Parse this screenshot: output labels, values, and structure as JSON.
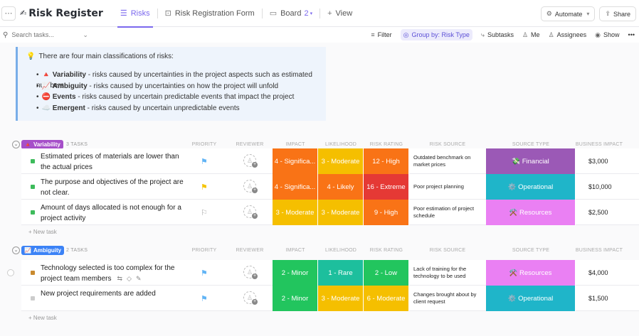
{
  "header": {
    "title": "Risk Register",
    "title_icon": "pencil-icon",
    "tabs": [
      {
        "label": "Risks",
        "icon": "list-icon",
        "active": true
      },
      {
        "label": "Risk Registration Form",
        "icon": "form-icon"
      },
      {
        "label": "Board",
        "icon": "board-icon",
        "count": "2"
      }
    ],
    "add_view": "View",
    "automate": "Automate",
    "share": "Share"
  },
  "toolbar": {
    "search_placeholder": "Search tasks...",
    "filter": "Filter",
    "group_by": "Group by: Risk Type",
    "subtasks": "Subtasks",
    "me": "Me",
    "assignees": "Assignees",
    "show": "Show"
  },
  "callout": {
    "intro": "There are four main classifications of risks:",
    "items": [
      {
        "emoji": "🔺",
        "name": "Variability",
        "desc": " - risks caused by uncertainties in the project aspects such as estimated numbers"
      },
      {
        "emoji": "📈",
        "name": "Ambiguity",
        "desc": " - risks caused by uncertainties on how the project will unfold"
      },
      {
        "emoji": "⛔",
        "name": "Events",
        "desc": " - risks caused by uncertain predictable events that impact the project"
      },
      {
        "emoji": "☁️",
        "name": "Emergent",
        "desc": " - risks caused by uncertain unpredictable events"
      }
    ]
  },
  "columns": {
    "priority": "PRIORITY",
    "reviewer": "REVIEWER",
    "impact": "IMPACT",
    "likelihood": "LIKELIHOOD",
    "risk_rating": "RISK RATING",
    "risk_source": "RISK SOURCE",
    "source_type": "SOURCE TYPE",
    "business_impact": "BUSINESS IMPACT"
  },
  "groups": [
    {
      "name": "Variability",
      "emoji": "🔺",
      "color": "#a64fc9",
      "count": "3 TASKS",
      "new_task": "+ New task",
      "rows": [
        {
          "name": "Estimated prices of materials are lower than the actual prices",
          "status_color": "#3dbb5b",
          "flag": "⚑",
          "flag_color": "#61b4f5",
          "impact": "4 - Significa...",
          "impact_color": "#f97316",
          "likelihood": "3 - Moderate",
          "likelihood_color": "#f5bf00",
          "rating": "12 - High",
          "rating_color": "#f97316",
          "source": "Outdated benchmark on market prices",
          "source_type": "💸 Financial",
          "source_type_color": "#9b59b6",
          "business_impact": "$3,000"
        },
        {
          "name": "The purpose and objectives of the project are not clear.",
          "status_color": "#3dbb5b",
          "flag": "⚑",
          "flag_color": "#f5c400",
          "impact": "4 - Significa...",
          "impact_color": "#f97316",
          "likelihood": "4 - Likely",
          "likelihood_color": "#f97316",
          "rating": "16 - Extreme",
          "rating_color": "#e53935",
          "source": "Poor project planning",
          "source_type": "⚙️ Operational",
          "source_type_color": "#1fb5c9",
          "business_impact": "$10,000"
        },
        {
          "name": "Amount of days allocated is not enough for a project activity",
          "status_color": "#3dbb5b",
          "flag": "⚐",
          "flag_color": "#aaaaaa",
          "impact": "3 - Moderate",
          "impact_color": "#f5bf00",
          "likelihood": "3 - Moderate",
          "likelihood_color": "#f5bf00",
          "rating": "9 - High",
          "rating_color": "#f97316",
          "source": "Poor estimation of project schedule",
          "source_type": "⚒️ Resources",
          "source_type_color": "#ea80f3",
          "business_impact": "$2,500"
        }
      ]
    },
    {
      "name": "Ambiguity",
      "emoji": "📈",
      "color": "#3b82f6",
      "count": "2 TASKS",
      "new_task": "+ New task",
      "rows": [
        {
          "name": "Technology selected is too complex for the project team members",
          "status_color": "#c98a2e",
          "flag": "⚑",
          "flag_color": "#61b4f5",
          "impact": "2 - Minor",
          "impact_color": "#22c55e",
          "likelihood": "1 - Rare",
          "likelihood_color": "#1dbf9d",
          "rating": "2 - Low",
          "rating_color": "#22c55e",
          "source": "Lack of training for the technology to be used",
          "source_type": "⚒️ Resources",
          "source_type_color": "#ea80f3",
          "business_impact": "$4,000"
        },
        {
          "name": "New project requirements are added",
          "status_color": "#cccccc",
          "flag": "⚑",
          "flag_color": "#61b4f5",
          "impact": "2 - Minor",
          "impact_color": "#22c55e",
          "likelihood": "3 - Moderate",
          "likelihood_color": "#f5bf00",
          "rating": "6 - Moderate",
          "rating_color": "#f5bf00",
          "source": "Changes brought about by client request",
          "source_type": "⚙️ Operational",
          "source_type_color": "#1fb5c9",
          "business_impact": "$1,500"
        }
      ]
    }
  ]
}
